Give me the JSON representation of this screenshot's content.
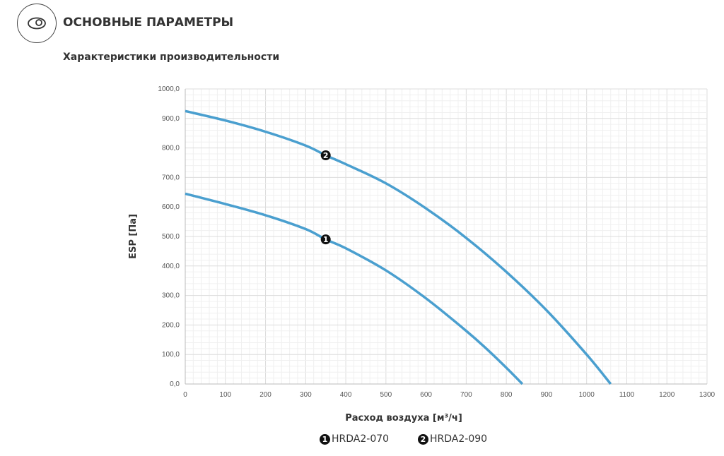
{
  "header": {
    "title": "ОСНОВНЫЕ ПАРАМЕТРЫ",
    "subtitle": "Характеристики производительности",
    "icon": "eye-icon"
  },
  "chart_data": {
    "type": "line",
    "xlabel": "Расход воздуха [м³/ч]",
    "ylabel": "ESP  [Па]",
    "xlim": [
      0,
      1300
    ],
    "ylim": [
      0,
      1000
    ],
    "xticks": [
      "0",
      "100",
      "200",
      "300",
      "400",
      "500",
      "600",
      "700",
      "800",
      "900",
      "1000",
      "1100",
      "1200",
      "1300"
    ],
    "yticks": [
      "0,0",
      "100,0",
      "200,0",
      "300,0",
      "400,0",
      "500,0",
      "600,0",
      "700,0",
      "800,0",
      "900,0",
      "1000,0"
    ],
    "grid": true,
    "legend_position": "bottom",
    "color": "#4a9fcf",
    "series": [
      {
        "name": "HRDA2-070",
        "marker": "1",
        "marker_x": 350,
        "x": [
          0,
          100,
          200,
          300,
          350,
          400,
          500,
          600,
          700,
          750,
          800,
          840
        ],
        "y": [
          645,
          610,
          572,
          525,
          490,
          460,
          385,
          290,
          180,
          120,
          55,
          0
        ]
      },
      {
        "name": "HRDA2-090",
        "marker": "2",
        "marker_x": 350,
        "x": [
          0,
          100,
          200,
          300,
          350,
          400,
          500,
          600,
          700,
          800,
          900,
          1000,
          1060
        ],
        "y": [
          925,
          893,
          855,
          808,
          775,
          745,
          680,
          595,
          495,
          380,
          250,
          100,
          0
        ]
      }
    ]
  }
}
